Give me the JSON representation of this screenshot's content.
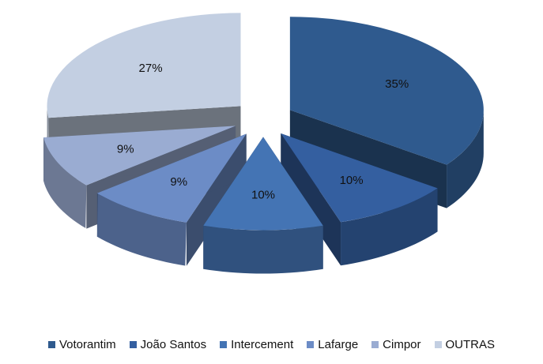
{
  "chart_data": {
    "type": "pie",
    "title": "",
    "style": "exploded 3D pie",
    "legend_position": "bottom",
    "categories": [
      "Votorantim",
      "João Santos",
      "Intercement",
      "Lafarge",
      "Cimpor",
      "OUTRAS"
    ],
    "values": [
      35,
      10,
      10,
      9,
      9,
      27
    ],
    "labels": [
      "35%",
      "10%",
      "10%",
      "9%",
      "9%",
      "27%"
    ],
    "colors": [
      "#2F5A8E",
      "#345FA0",
      "#4474B4",
      "#6C8CC6",
      "#9AACD2",
      "#C3CFE2"
    ]
  }
}
